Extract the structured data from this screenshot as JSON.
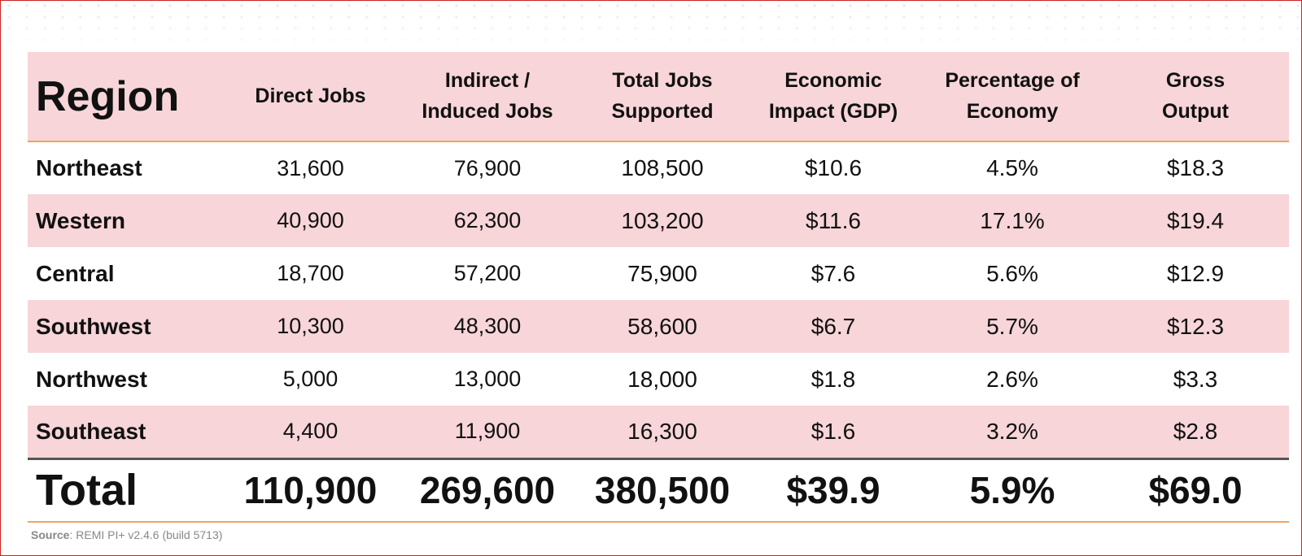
{
  "table": {
    "columns": [
      "Region",
      "Direct Jobs",
      "Indirect / Induced Jobs",
      "Total Jobs Supported",
      "Economic Impact (GDP)",
      "Percentage of Economy",
      "Gross Output"
    ],
    "rows": [
      {
        "region": "Northeast",
        "direct": "31,600",
        "indirect": "76,900",
        "total": "108,500",
        "gdp": "$10.6",
        "pct": "4.5%",
        "gross": "$18.3"
      },
      {
        "region": "Western",
        "direct": "40,900",
        "indirect": "62,300",
        "total": "103,200",
        "gdp": "$11.6",
        "pct": "17.1%",
        "gross": "$19.4"
      },
      {
        "region": "Central",
        "direct": "18,700",
        "indirect": "57,200",
        "total": "75,900",
        "gdp": "$7.6",
        "pct": "5.6%",
        "gross": "$12.9"
      },
      {
        "region": "Southwest",
        "direct": "10,300",
        "indirect": "48,300",
        "total": "58,600",
        "gdp": "$6.7",
        "pct": "5.7%",
        "gross": "$12.3"
      },
      {
        "region": "Northwest",
        "direct": "5,000",
        "indirect": "13,000",
        "total": "18,000",
        "gdp": "$1.8",
        "pct": "2.6%",
        "gross": "$3.3"
      },
      {
        "region": "Southeast",
        "direct": "4,400",
        "indirect": "11,900",
        "total": "16,300",
        "gdp": "$1.6",
        "pct": "3.2%",
        "gross": "$2.8"
      }
    ],
    "totals": {
      "label": "Total",
      "direct": "110,900",
      "indirect": "269,600",
      "total": "380,500",
      "gdp": "$39.9",
      "pct": "5.9%",
      "gross": "$69.0"
    }
  },
  "source": {
    "label": "Source",
    "text": "REMI PI+ v2.4.6 (build 5713)"
  },
  "colors": {
    "row_band": "#f7d5d8",
    "rule_orange": "#f0a55c",
    "frame_red": "#cc2222"
  }
}
